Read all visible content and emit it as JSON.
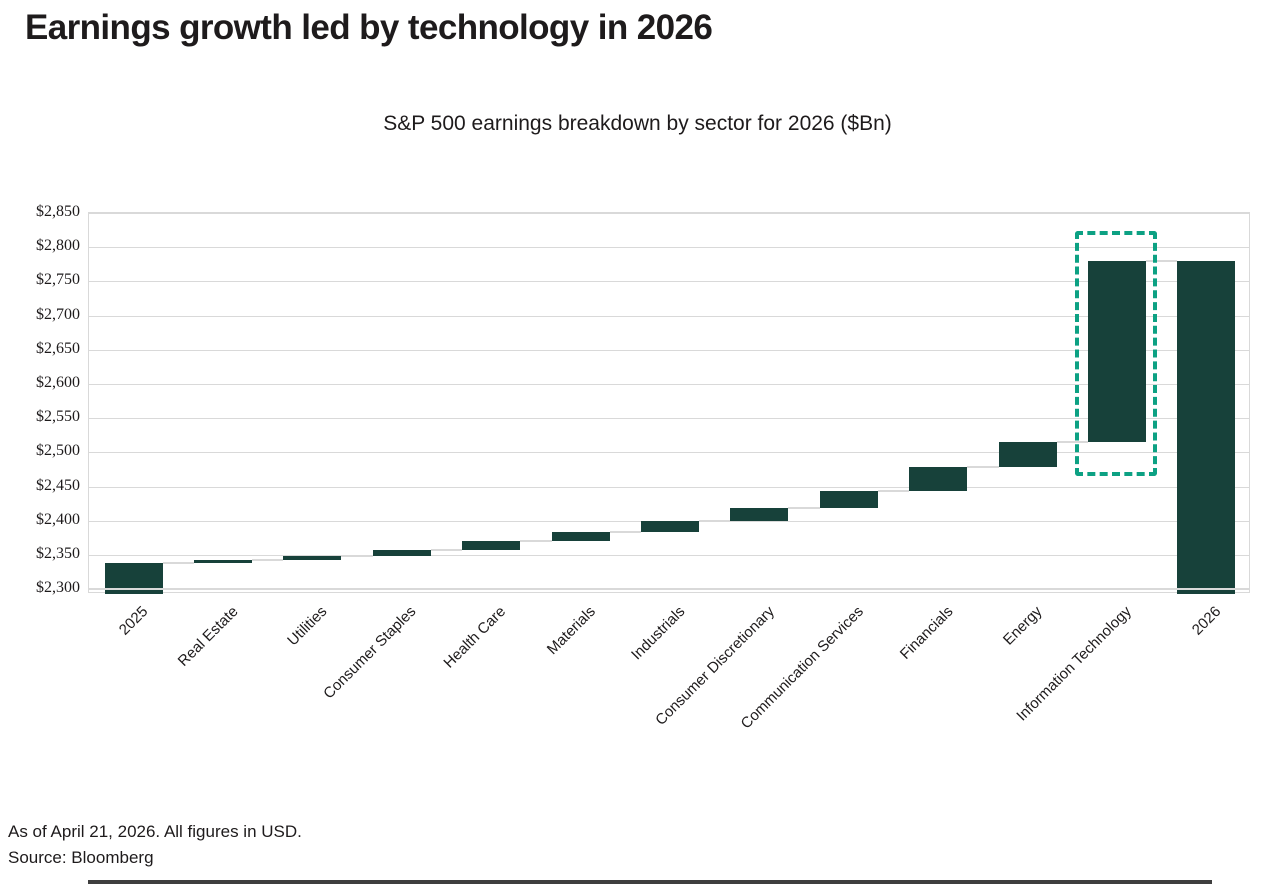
{
  "page": {
    "title": "Earnings growth led by technology in 2026",
    "footnote_asof": "As of April 21, 2026. All figures in USD.",
    "footnote_source": "Source: Bloomberg"
  },
  "chart_data": {
    "type": "bar",
    "subtype": "waterfall",
    "title": "S&P 500 earnings breakdown by sector for 2026 ($Bn)",
    "categories": [
      "2025",
      "Real Estate",
      "Utilities",
      "Consumer Staples",
      "Health Care",
      "Materials",
      "Industrials",
      "Consumer Discretionary",
      "Communication Services",
      "Financials",
      "Energy",
      "Information Technology",
      "2026"
    ],
    "bars": [
      {
        "label": "2025",
        "kind": "total",
        "start": 2300,
        "end": 2339,
        "value": 2339
      },
      {
        "label": "Real Estate",
        "kind": "increase",
        "delta": 4,
        "start": 2339,
        "end": 2343
      },
      {
        "label": "Utilities",
        "kind": "increase",
        "delta": 6,
        "start": 2343,
        "end": 2349
      },
      {
        "label": "Consumer Staples",
        "kind": "increase",
        "delta": 8,
        "start": 2349,
        "end": 2357
      },
      {
        "label": "Health Care",
        "kind": "increase",
        "delta": 13,
        "start": 2357,
        "end": 2370
      },
      {
        "label": "Materials",
        "kind": "increase",
        "delta": 13,
        "start": 2370,
        "end": 2383
      },
      {
        "label": "Industrials",
        "kind": "increase",
        "delta": 16,
        "start": 2383,
        "end": 2399
      },
      {
        "label": "Consumer Discretionary",
        "kind": "increase",
        "delta": 20,
        "start": 2399,
        "end": 2419
      },
      {
        "label": "Communication Services",
        "kind": "increase",
        "delta": 25,
        "start": 2419,
        "end": 2444
      },
      {
        "label": "Financials",
        "kind": "increase",
        "delta": 35,
        "start": 2444,
        "end": 2479
      },
      {
        "label": "Energy",
        "kind": "increase",
        "delta": 36,
        "start": 2479,
        "end": 2515
      },
      {
        "label": "Information Technology",
        "kind": "increase",
        "delta": 265,
        "start": 2515,
        "end": 2780
      },
      {
        "label": "2026",
        "kind": "total",
        "start": 2300,
        "end": 2780,
        "value": 2780
      }
    ],
    "ylim": [
      2300,
      2850
    ],
    "ytick_step": 50,
    "ytick_labels": [
      "$2,300",
      "$2,350",
      "$2,400",
      "$2,450",
      "$2,500",
      "$2,550",
      "$2,600",
      "$2,650",
      "$2,700",
      "$2,750",
      "$2,800",
      "$2,850"
    ],
    "grid": true,
    "legend": "none",
    "colors": {
      "bar": "#17413a",
      "connector": "#d9d9d9",
      "grid": "#d9d9d9",
      "axis_line": "#d9d9d9",
      "highlight_box": "#0ca183",
      "text": "#1e1b1c"
    },
    "highlight": {
      "category": "Information Technology",
      "style": "dashed-box"
    }
  }
}
